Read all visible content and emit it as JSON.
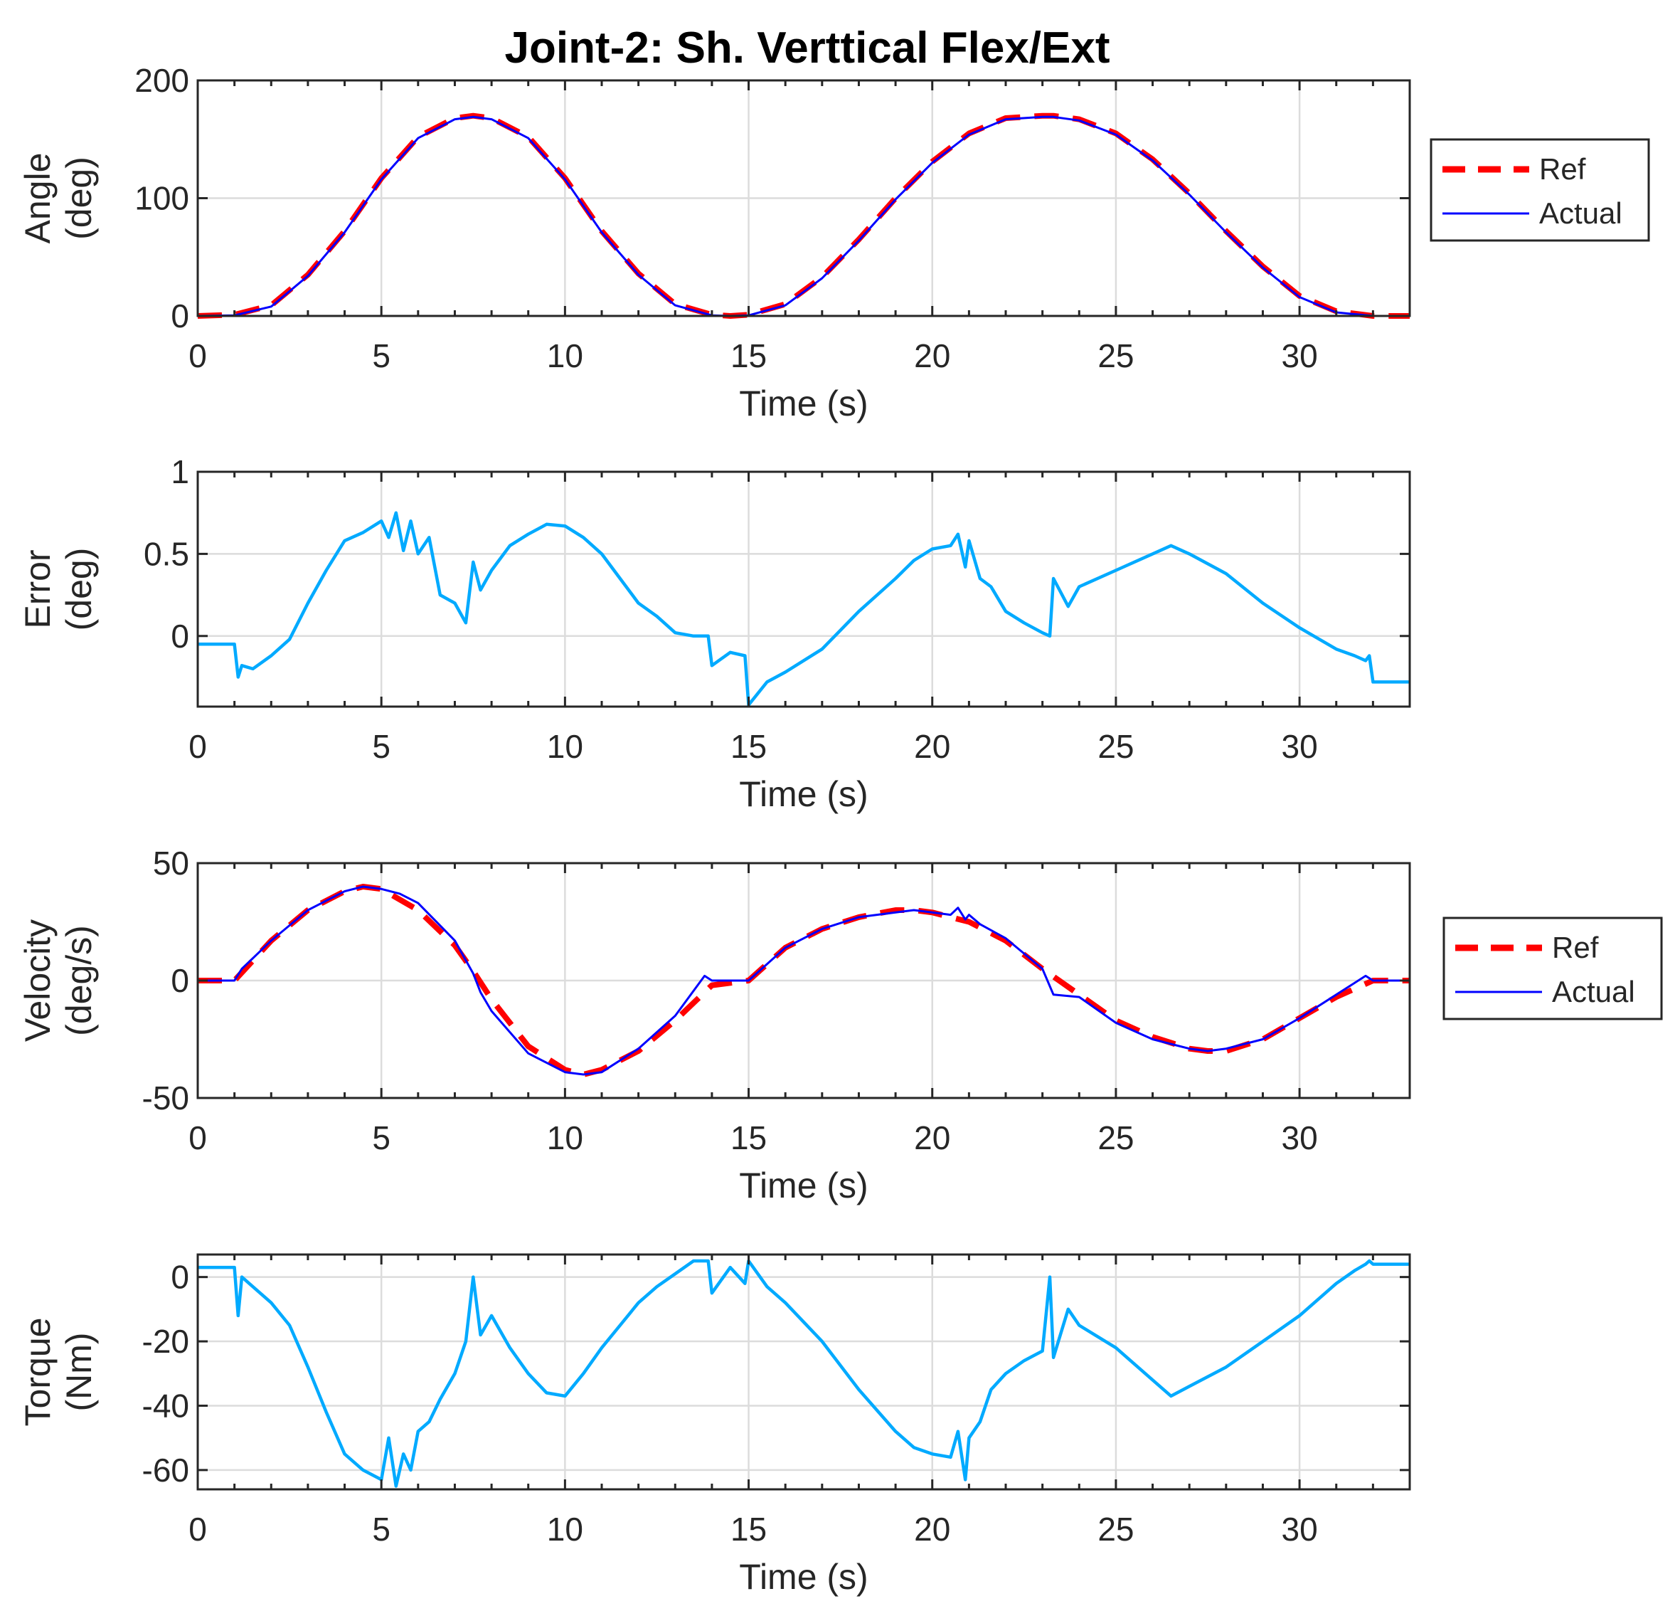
{
  "figure_title": "Joint-2: Sh. Verttical Flex/Ext",
  "colors": {
    "ref": "#ff0000",
    "actual": "#0000ff",
    "measured": "#00aaff",
    "grid": "#dcdcdc",
    "axis": "#262626"
  },
  "chart_data": [
    {
      "type": "line",
      "title": "Joint-2: Sh. Verttical Flex/Ext",
      "xlabel": "Time (s)",
      "ylabel_lines": [
        "Angle",
        "(deg)"
      ],
      "xlim": [
        0,
        33
      ],
      "ylim": [
        0,
        200
      ],
      "xticks": [
        0,
        5,
        10,
        15,
        20,
        25,
        30
      ],
      "yticks": [
        0,
        100,
        200
      ],
      "xtick_labels": [
        "0",
        "5",
        "10",
        "15",
        "20",
        "25",
        "30"
      ],
      "ytick_labels": [
        "0",
        "100",
        "200"
      ],
      "grid": true,
      "legend": {
        "position": "outside-right",
        "labels": [
          "Ref",
          "Actual"
        ]
      },
      "series": [
        {
          "name": "Ref",
          "style": "dashed",
          "color": "#ff0000",
          "x": [
            0,
            1,
            2,
            3,
            4,
            5,
            6,
            7,
            7.5,
            8,
            9,
            10,
            11,
            12,
            13,
            14,
            14.5,
            15,
            16,
            17,
            18,
            19,
            20,
            21,
            22,
            23,
            23.3,
            24,
            25,
            26,
            27,
            28,
            29,
            30,
            31,
            32,
            33
          ],
          "y": [
            0,
            1,
            9,
            35,
            72,
            117,
            152,
            168,
            170,
            168,
            152,
            117,
            72,
            36,
            10,
            1,
            0,
            1,
            10,
            33,
            65,
            100,
            131,
            155,
            168,
            170,
            170,
            167,
            155,
            133,
            104,
            72,
            42,
            17,
            4,
            0,
            0
          ]
        },
        {
          "name": "Actual",
          "style": "solid",
          "color": "#0000ff",
          "x": [
            0,
            1,
            2,
            3,
            4,
            5,
            6,
            7,
            7.5,
            8,
            9,
            10,
            11,
            12,
            13,
            14,
            14.5,
            15,
            16,
            17,
            18,
            19,
            20,
            21,
            22,
            23,
            23.3,
            24,
            25,
            26,
            27,
            28,
            29,
            30,
            31,
            32,
            33
          ],
          "y": [
            0,
            0.5,
            8,
            34,
            71,
            116,
            151,
            167,
            169,
            167,
            151,
            116,
            71,
            35,
            9,
            0.5,
            0,
            0.5,
            9,
            32,
            64,
            99,
            130,
            154,
            167,
            169,
            169,
            166,
            154,
            132,
            103,
            71,
            41,
            16,
            3,
            0,
            0
          ]
        }
      ]
    },
    {
      "type": "line",
      "xlabel": "Time (s)",
      "ylabel_lines": [
        "Error",
        "(deg)"
      ],
      "xlim": [
        0,
        33
      ],
      "ylim": [
        -0.43,
        1
      ],
      "xticks": [
        0,
        5,
        10,
        15,
        20,
        25,
        30
      ],
      "yticks": [
        0,
        0.5,
        1
      ],
      "xtick_labels": [
        "0",
        "5",
        "10",
        "15",
        "20",
        "25",
        "30"
      ],
      "ytick_labels": [
        "0",
        "0.5",
        "1"
      ],
      "grid": true,
      "series": [
        {
          "name": "Error",
          "style": "solid",
          "color": "#00aaff",
          "x": [
            0,
            1,
            1.1,
            1.2,
            1.5,
            2,
            2.5,
            3,
            3.5,
            4,
            4.5,
            5,
            5.2,
            5.4,
            5.6,
            5.8,
            6,
            6.3,
            6.6,
            7,
            7.3,
            7.5,
            7.7,
            8,
            8.5,
            9,
            9.5,
            10,
            10.5,
            11,
            11.5,
            12,
            12.5,
            13,
            13.5,
            13.9,
            14,
            14.5,
            14.9,
            15,
            15.5,
            16,
            17,
            18,
            19,
            19.5,
            20,
            20.5,
            20.7,
            20.9,
            21,
            21.3,
            21.6,
            22,
            22.5,
            23,
            23.2,
            23.3,
            23.7,
            24,
            25,
            26,
            26.5,
            27,
            28,
            29,
            30,
            31,
            31.5,
            31.8,
            31.9,
            32,
            33
          ],
          "y": [
            -0.05,
            -0.05,
            -0.25,
            -0.18,
            -0.2,
            -0.12,
            -0.02,
            0.2,
            0.4,
            0.58,
            0.63,
            0.7,
            0.6,
            0.75,
            0.52,
            0.7,
            0.5,
            0.6,
            0.25,
            0.2,
            0.08,
            0.45,
            0.28,
            0.4,
            0.55,
            0.62,
            0.68,
            0.67,
            0.6,
            0.5,
            0.35,
            0.2,
            0.12,
            0.02,
            0,
            0,
            -0.18,
            -0.1,
            -0.12,
            -0.42,
            -0.28,
            -0.22,
            -0.08,
            0.15,
            0.35,
            0.46,
            0.53,
            0.55,
            0.62,
            0.42,
            0.58,
            0.35,
            0.3,
            0.15,
            0.08,
            0.02,
            0,
            0.35,
            0.18,
            0.3,
            0.4,
            0.5,
            0.55,
            0.5,
            0.38,
            0.2,
            0.05,
            -0.08,
            -0.12,
            -0.15,
            -0.12,
            -0.28,
            -0.28
          ]
        }
      ]
    },
    {
      "type": "line",
      "xlabel": "Time (s)",
      "ylabel_lines": [
        "Velocity",
        "(deg/s)"
      ],
      "xlim": [
        0,
        33
      ],
      "ylim": [
        -50,
        50
      ],
      "xticks": [
        0,
        5,
        10,
        15,
        20,
        25,
        30
      ],
      "yticks": [
        -50,
        0,
        50
      ],
      "xtick_labels": [
        "0",
        "5",
        "10",
        "15",
        "20",
        "25",
        "30"
      ],
      "ytick_labels": [
        "-50",
        "0",
        "50"
      ],
      "grid": true,
      "legend": {
        "position": "outside-right",
        "labels": [
          "Ref",
          "Actual"
        ]
      },
      "series": [
        {
          "name": "Ref",
          "style": "dashed",
          "color": "#ff0000",
          "x": [
            0,
            1,
            2,
            3,
            4,
            4.5,
            5,
            6,
            7,
            7.5,
            8,
            9,
            10,
            10.5,
            11,
            12,
            13,
            14,
            15,
            16,
            17,
            18,
            19,
            19.5,
            20,
            21,
            22,
            23,
            24,
            25,
            26,
            27,
            27.5,
            28,
            29,
            30,
            31,
            32,
            33
          ],
          "y": [
            0,
            0,
            17,
            30,
            38,
            40,
            39,
            30,
            15,
            4,
            -8,
            -28,
            -38,
            -40,
            -38,
            -30,
            -17,
            -2,
            0,
            14,
            22,
            27,
            30,
            30,
            29,
            25,
            17,
            5,
            -6,
            -17,
            -24,
            -29,
            -30,
            -30,
            -25,
            -16,
            -7,
            0,
            0
          ]
        },
        {
          "name": "Actual",
          "style": "solid",
          "color": "#0000ff",
          "x": [
            0,
            1,
            1.2,
            2,
            3,
            4,
            4.5,
            5,
            5.5,
            6,
            7,
            7.5,
            7.7,
            8,
            9,
            10,
            10.5,
            11,
            12,
            13,
            13.8,
            14,
            15,
            16,
            17,
            18,
            19,
            19.5,
            20,
            20.5,
            20.7,
            20.9,
            21,
            21.3,
            22,
            23,
            23.3,
            24,
            25,
            26,
            27,
            27.5,
            28,
            29,
            30,
            31,
            31.8,
            32,
            33
          ],
          "y": [
            0,
            0,
            5,
            17,
            30,
            38,
            40,
            39,
            37,
            33,
            17,
            3,
            -5,
            -13,
            -31,
            -39,
            -40,
            -39,
            -29,
            -15,
            2,
            0,
            0,
            14,
            22,
            27,
            29,
            30,
            29,
            28,
            31,
            26,
            28,
            24,
            18,
            5,
            -6,
            -7,
            -18,
            -25,
            -29,
            -30,
            -29,
            -25,
            -16,
            -6,
            2,
            0,
            0
          ]
        }
      ]
    },
    {
      "type": "line",
      "xlabel": "Time (s)",
      "ylabel_lines": [
        "Torque",
        "(Nm)"
      ],
      "xlim": [
        0,
        33
      ],
      "ylim": [
        -66,
        7
      ],
      "xticks": [
        0,
        5,
        10,
        15,
        20,
        25,
        30
      ],
      "yticks": [
        -60,
        -40,
        -20,
        0
      ],
      "xtick_labels": [
        "0",
        "5",
        "10",
        "15",
        "20",
        "25",
        "30"
      ],
      "ytick_labels": [
        "-60",
        "-40",
        "-20",
        "0"
      ],
      "grid": true,
      "series": [
        {
          "name": "Torque",
          "style": "solid",
          "color": "#00aaff",
          "x": [
            0,
            1,
            1.1,
            1.2,
            1.5,
            2,
            2.5,
            3,
            3.5,
            4,
            4.5,
            5,
            5.2,
            5.4,
            5.6,
            5.8,
            6,
            6.3,
            6.6,
            7,
            7.3,
            7.5,
            7.7,
            8,
            8.5,
            9,
            9.5,
            10,
            10.5,
            11,
            11.5,
            12,
            12.5,
            13,
            13.5,
            13.9,
            14,
            14.5,
            14.9,
            15,
            15.5,
            16,
            17,
            18,
            19,
            19.5,
            20,
            20.5,
            20.7,
            20.9,
            21,
            21.3,
            21.6,
            22,
            22.5,
            23,
            23.2,
            23.3,
            23.7,
            24,
            25,
            26,
            26.5,
            27,
            28,
            29,
            30,
            31,
            31.5,
            31.8,
            31.9,
            32,
            33
          ],
          "y": [
            3,
            3,
            -12,
            0,
            -3,
            -8,
            -15,
            -28,
            -42,
            -55,
            -60,
            -63,
            -50,
            -65,
            -55,
            -60,
            -48,
            -45,
            -38,
            -30,
            -20,
            0,
            -18,
            -12,
            -22,
            -30,
            -36,
            -37,
            -30,
            -22,
            -15,
            -8,
            -3,
            1,
            5,
            5,
            -5,
            3,
            -2,
            5,
            -3,
            -8,
            -20,
            -35,
            -48,
            -53,
            -55,
            -56,
            -48,
            -63,
            -50,
            -45,
            -35,
            -30,
            -26,
            -23,
            0,
            -25,
            -10,
            -15,
            -22,
            -32,
            -37,
            -34,
            -28,
            -20,
            -12,
            -2,
            2,
            4,
            5,
            4,
            4
          ]
        }
      ]
    }
  ]
}
